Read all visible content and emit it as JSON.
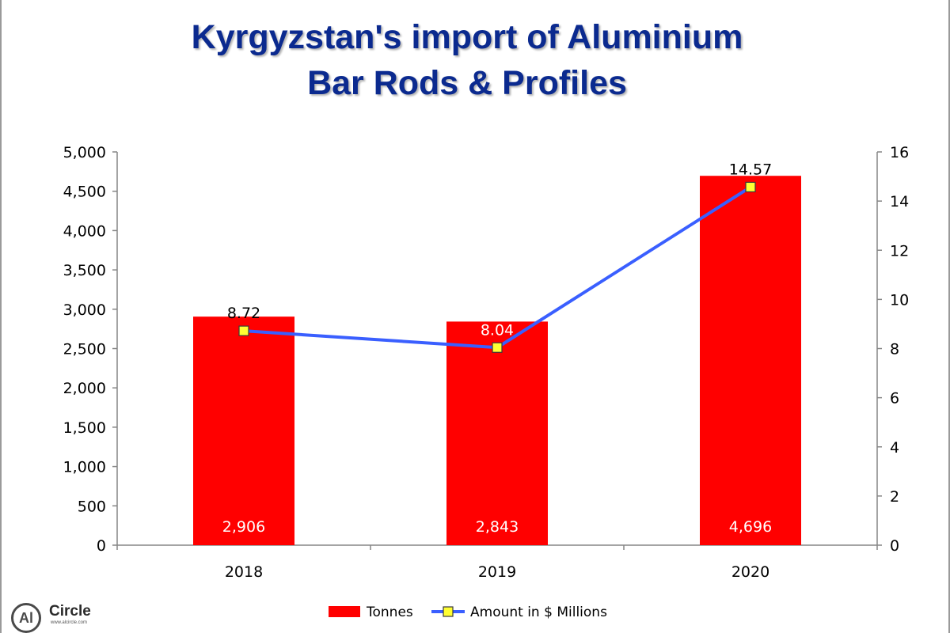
{
  "title_line1": "Kyrgyzstan's import of Aluminium",
  "title_line2": "Bar Rods & Profiles",
  "logo": {
    "mark": "Al",
    "name": "Circle",
    "url": "www.alcircle.com"
  },
  "colors": {
    "bar": "#ff0000",
    "line": "#3a5fff",
    "marker_fill": "#ffff33",
    "title": "#0b2a8f"
  },
  "chart_data": {
    "type": "bar",
    "categories": [
      "2018",
      "2019",
      "2020"
    ],
    "series": [
      {
        "name": "Tonnes",
        "type": "bar",
        "axis": "left",
        "values": [
          2906,
          2843,
          4696
        ],
        "labels": [
          "2,906",
          "2,843",
          "4,696"
        ]
      },
      {
        "name": "Amount in $ Millions",
        "type": "line",
        "axis": "right",
        "values": [
          8.72,
          8.04,
          14.57
        ],
        "labels": [
          "8.72",
          "8.04",
          "14.57"
        ]
      }
    ],
    "ylim_left": [
      0,
      5000
    ],
    "yticks_left": [
      "0",
      "500",
      "1,000",
      "1,500",
      "2,000",
      "2,500",
      "3,000",
      "3,500",
      "4,000",
      "4,500",
      "5,000"
    ],
    "ylim_right": [
      0,
      16
    ],
    "yticks_right": [
      "0",
      "2",
      "4",
      "6",
      "8",
      "10",
      "12",
      "14",
      "16"
    ],
    "grid": false,
    "legend_position": "bottom"
  }
}
